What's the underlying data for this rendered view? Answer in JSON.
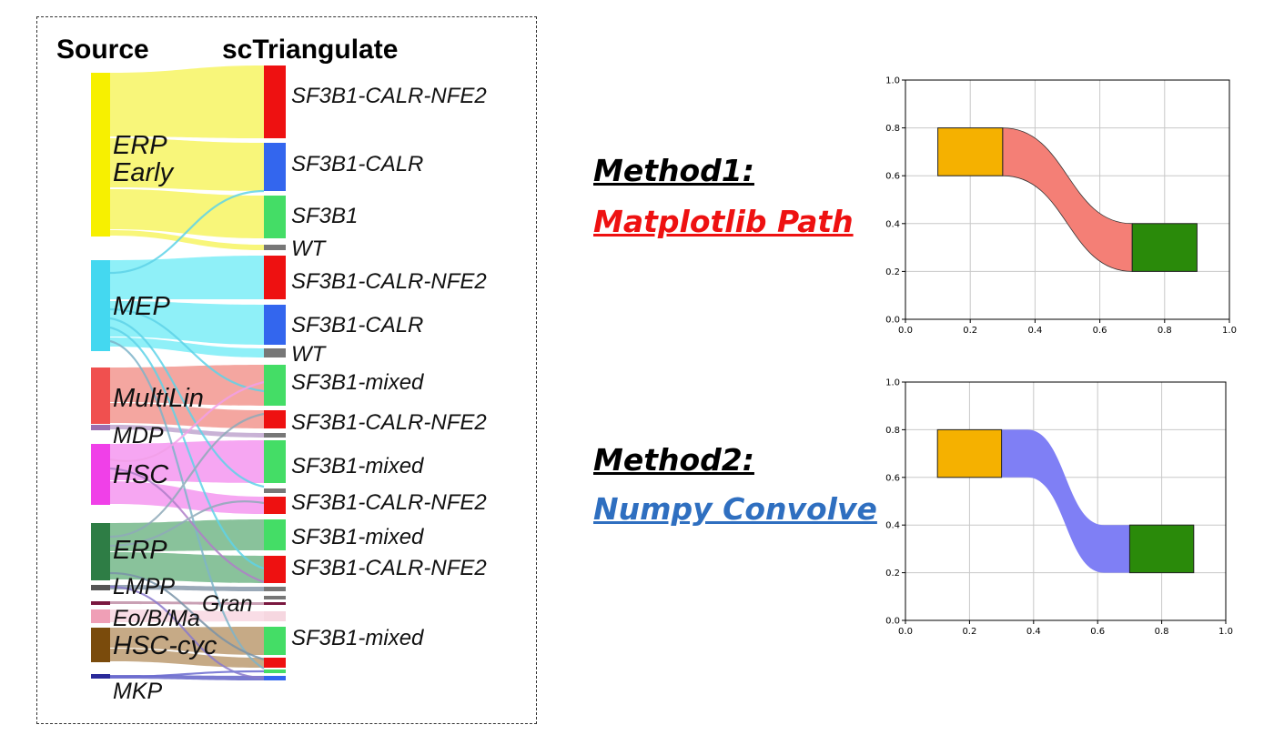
{
  "sankey": {
    "header_source": "Source",
    "header_target": "scTriangulate",
    "sources": [
      {
        "lines": [
          "ERP",
          "Early"
        ],
        "color": "#f7f000",
        "flow": "#f8f67a"
      },
      {
        "lines": [
          "MEP"
        ],
        "color": "#44d8f0",
        "flow": "#8ff0f8"
      },
      {
        "lines": [
          "MultiLin"
        ],
        "color": "#f0504f",
        "flow": "#f4a6a0"
      },
      {
        "lines": [
          "MDP"
        ],
        "color": "#9b6fb0",
        "flow": "#c9b3d6"
      },
      {
        "lines": [
          "HSC"
        ],
        "color": "#f040e8",
        "flow": "#f6a6f2"
      },
      {
        "lines": [
          "ERP"
        ],
        "color": "#2e7d45",
        "flow": "#89c29b"
      },
      {
        "lines": [
          "LMPP"
        ],
        "color": "#555555",
        "flow": "#9aa9b8"
      },
      {
        "lines": [
          "Eo/B/Ma"
        ],
        "color": "#ef9fb6",
        "flow": "#f9dde6"
      },
      {
        "lines": [
          "HSC-cyc"
        ],
        "color": "#7a4b0c",
        "flow": "#c6aa86"
      },
      {
        "lines": [
          "MKP"
        ],
        "color": "#2a2a9a",
        "flow": "#7a7ad0"
      }
    ],
    "extra_label": "Gran",
    "targets": [
      "SF3B1-CALR-NFE2",
      "SF3B1-CALR",
      "SF3B1",
      "WT",
      "SF3B1-CALR-NFE2",
      "SF3B1-CALR",
      "WT",
      "SF3B1-mixed",
      "SF3B1-CALR-NFE2",
      "SF3B1-mixed",
      "SF3B1-CALR-NFE2",
      "SF3B1-mixed",
      "SF3B1-CALR-NFE2",
      "SF3B1-mixed"
    ],
    "target_colors": {
      "nfe2": "#ee1111",
      "calr": "#3366ee",
      "sf3b1": "#44dd66",
      "wt": "#777777"
    }
  },
  "methods": [
    {
      "title": "Method1:",
      "subtitle": "Matplotlib Path",
      "subtitle_color": "#ee1111"
    },
    {
      "title": "Method2:",
      "subtitle": "Numpy Convolve",
      "subtitle_color": "#2f6fc0"
    }
  ],
  "charts": {
    "chart_data": [
      {
        "type": "area",
        "method": "Matplotlib Path",
        "xlim": [
          0,
          1
        ],
        "ylim": [
          0,
          1
        ],
        "xticks": [
          "0.0",
          "0.2",
          "0.4",
          "0.6",
          "0.8",
          "1.0"
        ],
        "yticks": [
          "0.0",
          "0.2",
          "0.4",
          "0.6",
          "0.8",
          "1.0"
        ],
        "grid": true,
        "rects": [
          {
            "x": [
              0.1,
              0.3
            ],
            "y": [
              0.6,
              0.8
            ],
            "color": "#f5b100"
          },
          {
            "x": [
              0.7,
              0.9
            ],
            "y": [
              0.2,
              0.4
            ],
            "color": "#2a8a0a"
          }
        ],
        "flow": {
          "x": [
            0.3,
            0.7
          ],
          "top": [
            0.8,
            0.4
          ],
          "bottom": [
            0.6,
            0.2
          ],
          "color": "#f47f76",
          "curve": "bezier"
        }
      },
      {
        "type": "area",
        "method": "Numpy Convolve",
        "xlim": [
          0,
          1
        ],
        "ylim": [
          0,
          1
        ],
        "xticks": [
          "0.0",
          "0.2",
          "0.4",
          "0.6",
          "0.8",
          "1.0"
        ],
        "yticks": [
          "0.0",
          "0.2",
          "0.4",
          "0.6",
          "0.8",
          "1.0"
        ],
        "grid": true,
        "rects": [
          {
            "x": [
              0.1,
              0.3
            ],
            "y": [
              0.6,
              0.8
            ],
            "color": "#f5b100"
          },
          {
            "x": [
              0.7,
              0.9
            ],
            "y": [
              0.2,
              0.4
            ],
            "color": "#2a8a0a"
          }
        ],
        "flow": {
          "x": [
            0.3,
            0.7
          ],
          "top": [
            0.8,
            0.4
          ],
          "bottom": [
            0.6,
            0.2
          ],
          "color": "#7f7ff5",
          "curve": "convolve",
          "flat_span": [
            0.38,
            0.62
          ]
        }
      }
    ]
  }
}
